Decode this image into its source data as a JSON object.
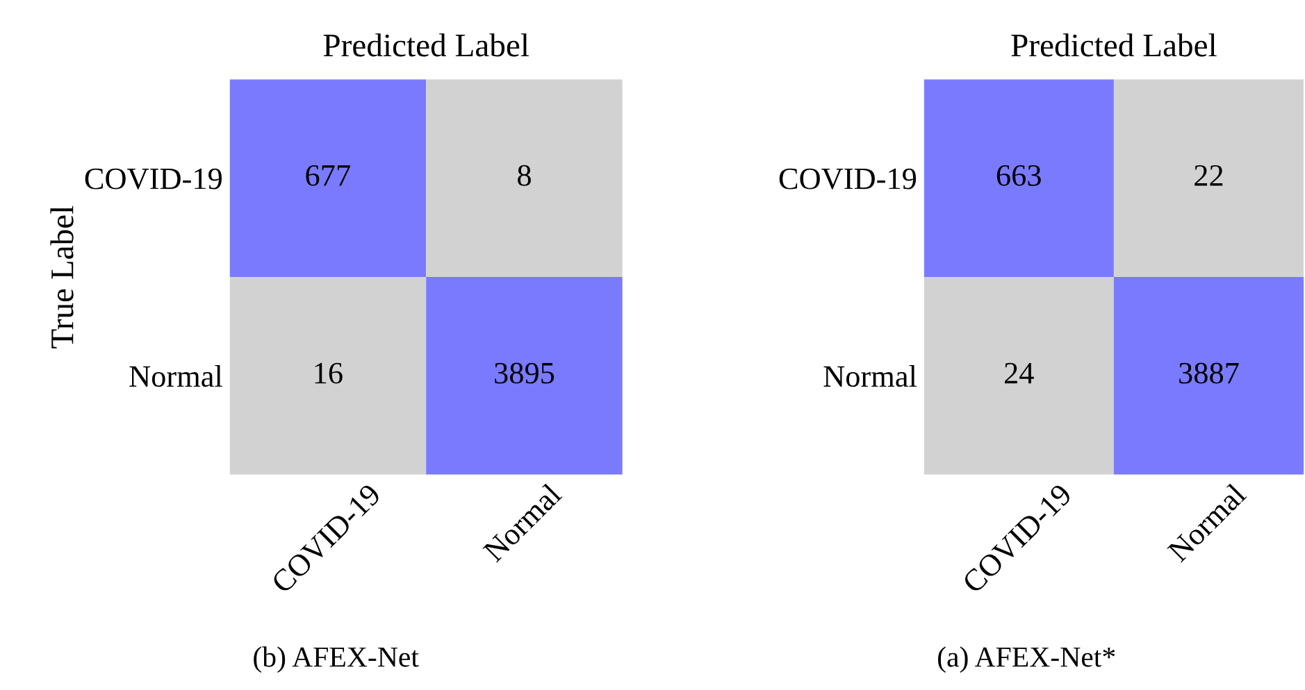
{
  "chart_data": [
    {
      "type": "heatmap",
      "xlabel": "Predicted Label",
      "ylabel": "True Label",
      "categories": [
        "COVID-19",
        "Normal"
      ],
      "y_categories": [
        "COVID-19",
        "Normal"
      ],
      "cells": [
        [
          677,
          8
        ],
        [
          16,
          3895
        ]
      ],
      "colors": [
        [
          "#7a7aff",
          "#d2d2d2"
        ],
        [
          "#d2d2d2",
          "#7a7aff"
        ]
      ],
      "data_labels": true,
      "annotations": [
        "(b) AFEX-Net"
      ]
    },
    {
      "type": "heatmap",
      "xlabel": "Predicted Label",
      "categories": [
        "COVID-19",
        "Normal"
      ],
      "y_categories": [
        "COVID-19",
        "Normal"
      ],
      "cells": [
        [
          663,
          22
        ],
        [
          24,
          3887
        ]
      ],
      "colors": [
        [
          "#7a7aff",
          "#d2d2d2"
        ],
        [
          "#d2d2d2",
          "#7a7aff"
        ]
      ],
      "data_labels": true,
      "annotations": [
        "(a) AFEX-Net*"
      ]
    }
  ]
}
